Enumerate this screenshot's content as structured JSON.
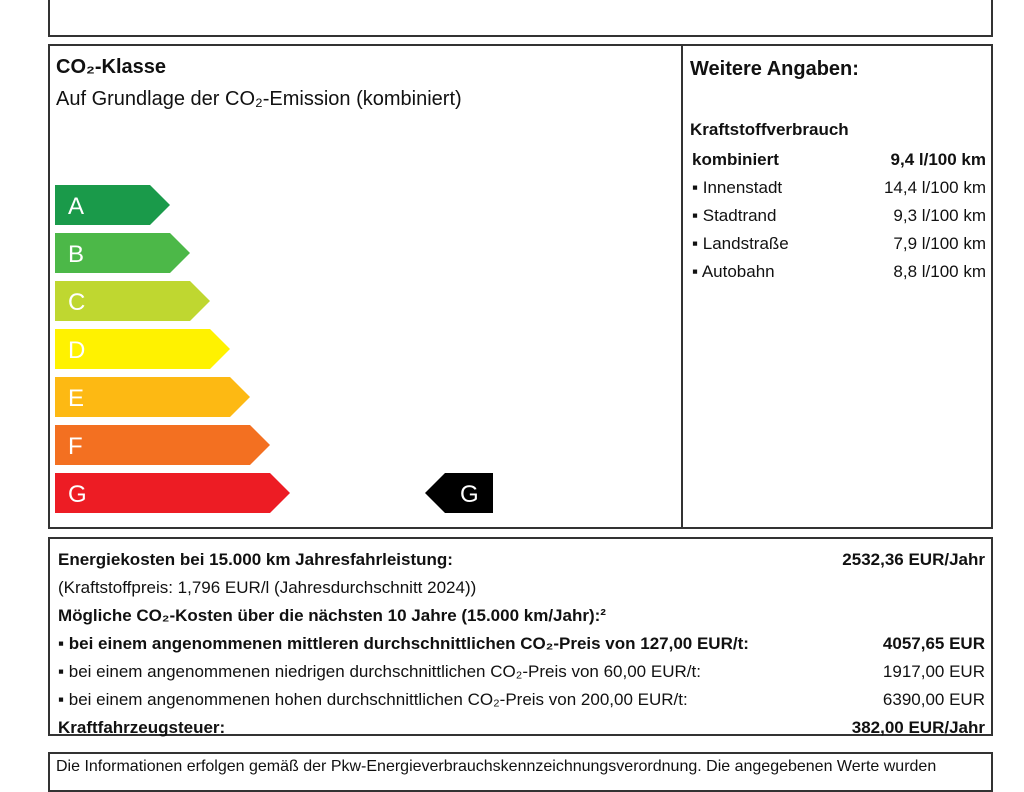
{
  "co2_class": {
    "title": "CO₂-Klasse",
    "subtitle": "Auf Grundlage der CO₂-Emission (kombiniert)",
    "classes": [
      {
        "label": "A",
        "color": "#1a9a4a"
      },
      {
        "label": "B",
        "color": "#4cb848"
      },
      {
        "label": "C",
        "color": "#bfd730"
      },
      {
        "label": "D",
        "color": "#fff200"
      },
      {
        "label": "E",
        "color": "#fdb913"
      },
      {
        "label": "F",
        "color": "#f37021"
      },
      {
        "label": "G",
        "color": "#ed1c24"
      }
    ],
    "current": "G"
  },
  "details": {
    "title": "Weitere Angaben:",
    "subtitle": "Kraftstoffverbrauch",
    "rows": [
      [
        "kombiniert",
        "9,4 l/100 km"
      ],
      [
        "Innenstadt",
        "14,4 l/100 km"
      ],
      [
        "Stadtrand",
        "9,3 l/100 km"
      ],
      [
        "Landstraße",
        "7,9 l/100 km"
      ],
      [
        "Autobahn",
        "8,8 l/100 km"
      ]
    ]
  },
  "costs": {
    "rows": [
      [
        "Energiekosten bei 15.000 km Jahresfahrleistung:",
        "2532,36 EUR/Jahr"
      ],
      [
        "(Kraftstoffpreis: 1,796 EUR/l (Jahresdurchschnitt 2024))",
        ""
      ],
      [
        "Mögliche CO₂-Kosten über die nächsten 10 Jahre (15.000 km/Jahr):²",
        ""
      ],
      [
        "bei einem angenommenen mittleren durchschnittlichen CO₂-Preis von 127,00 EUR/t:",
        "4057,65 EUR"
      ],
      [
        "bei einem angenommenen niedrigen durchschnittlichen CO₂-Preis von 60,00 EUR/t:",
        "1917,00 EUR"
      ],
      [
        "bei einem angenommenen hohen durchschnittlichen CO₂-Preis von 200,00 EUR/t:",
        "6390,00 EUR"
      ],
      [
        "Kraftfahrzeugsteuer:",
        "382,00 EUR/Jahr"
      ]
    ]
  },
  "footer": "Die Informationen erfolgen gemäß der Pkw-Energieverbrauchskennzeichnungsverordnung. Die angegebenen Werte wurden"
}
